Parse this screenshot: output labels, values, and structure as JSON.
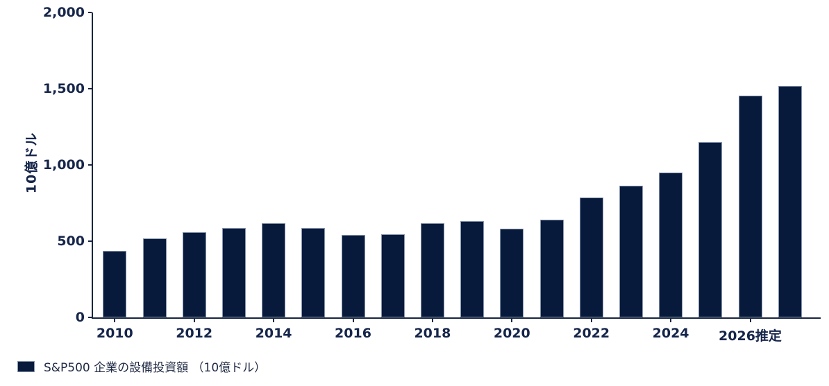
{
  "chart_data": {
    "type": "bar",
    "title": "",
    "xlabel": "",
    "ylabel": "10億ドル",
    "ylim": [
      0,
      2000
    ],
    "grid": false,
    "legend_position": "bottom-left",
    "y_ticks": [
      {
        "value": 0,
        "label": "0"
      },
      {
        "value": 500,
        "label": "500"
      },
      {
        "value": 1000,
        "label": "1,000"
      },
      {
        "value": 1500,
        "label": "1,500"
      },
      {
        "value": 2000,
        "label": "2,000"
      }
    ],
    "categories": [
      "2010",
      "2011",
      "2012",
      "2013",
      "2014",
      "2015",
      "2016",
      "2017",
      "2018",
      "2019",
      "2020",
      "2021",
      "2022",
      "2023",
      "2024",
      "2025",
      "2026",
      "2027"
    ],
    "values": [
      435,
      520,
      560,
      585,
      620,
      585,
      540,
      545,
      620,
      630,
      580,
      640,
      785,
      865,
      950,
      1150,
      1455,
      1520
    ],
    "x_tick_labels": [
      "2010",
      "2012",
      "2014",
      "2016",
      "2018",
      "2020",
      "2022",
      "2024",
      "2026推定"
    ],
    "x_tick_every": 2,
    "bar_color": "#071a3c",
    "bar_border_color": "#8896ac",
    "axis_color": "#17253f",
    "text_color": "#16254a"
  },
  "legend": {
    "label": "S&P500 企業の設備投資額 （10億ドル）",
    "swatch_color": "#071a3c"
  }
}
